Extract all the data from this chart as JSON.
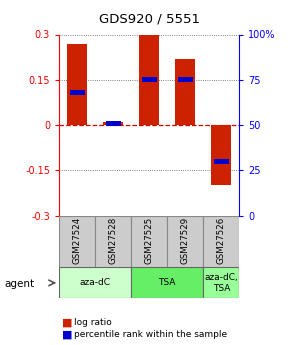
{
  "title": "GDS920 / 5551",
  "samples": [
    "GSM27524",
    "GSM27528",
    "GSM27525",
    "GSM27529",
    "GSM27526"
  ],
  "log_ratios": [
    0.27,
    0.01,
    0.3,
    0.22,
    -0.2
  ],
  "percentile_ranks": [
    0.68,
    0.51,
    0.75,
    0.75,
    0.3
  ],
  "ylim_left": [
    -0.3,
    0.3
  ],
  "yticks_left": [
    -0.3,
    -0.15,
    0.0,
    0.15,
    0.3
  ],
  "yticks_right": [
    0,
    25,
    50,
    75,
    100
  ],
  "agent_groups": [
    {
      "label": "aza-dC",
      "start": 0,
      "end": 2,
      "color": "#ccffcc"
    },
    {
      "label": "TSA",
      "start": 2,
      "end": 4,
      "color": "#66ee66"
    },
    {
      "label": "aza-dC,\nTSA",
      "start": 4,
      "end": 5,
      "color": "#99ff99"
    }
  ],
  "bar_color": "#cc2200",
  "percentile_color": "#0000cc",
  "bar_width": 0.55,
  "hline_red_color": "#cc0000",
  "dotted_color": "#555555",
  "bg_color": "#ffffff",
  "legend_log_ratio": "log ratio",
  "legend_percentile": "percentile rank within the sample",
  "sample_box_color": "#cccccc"
}
